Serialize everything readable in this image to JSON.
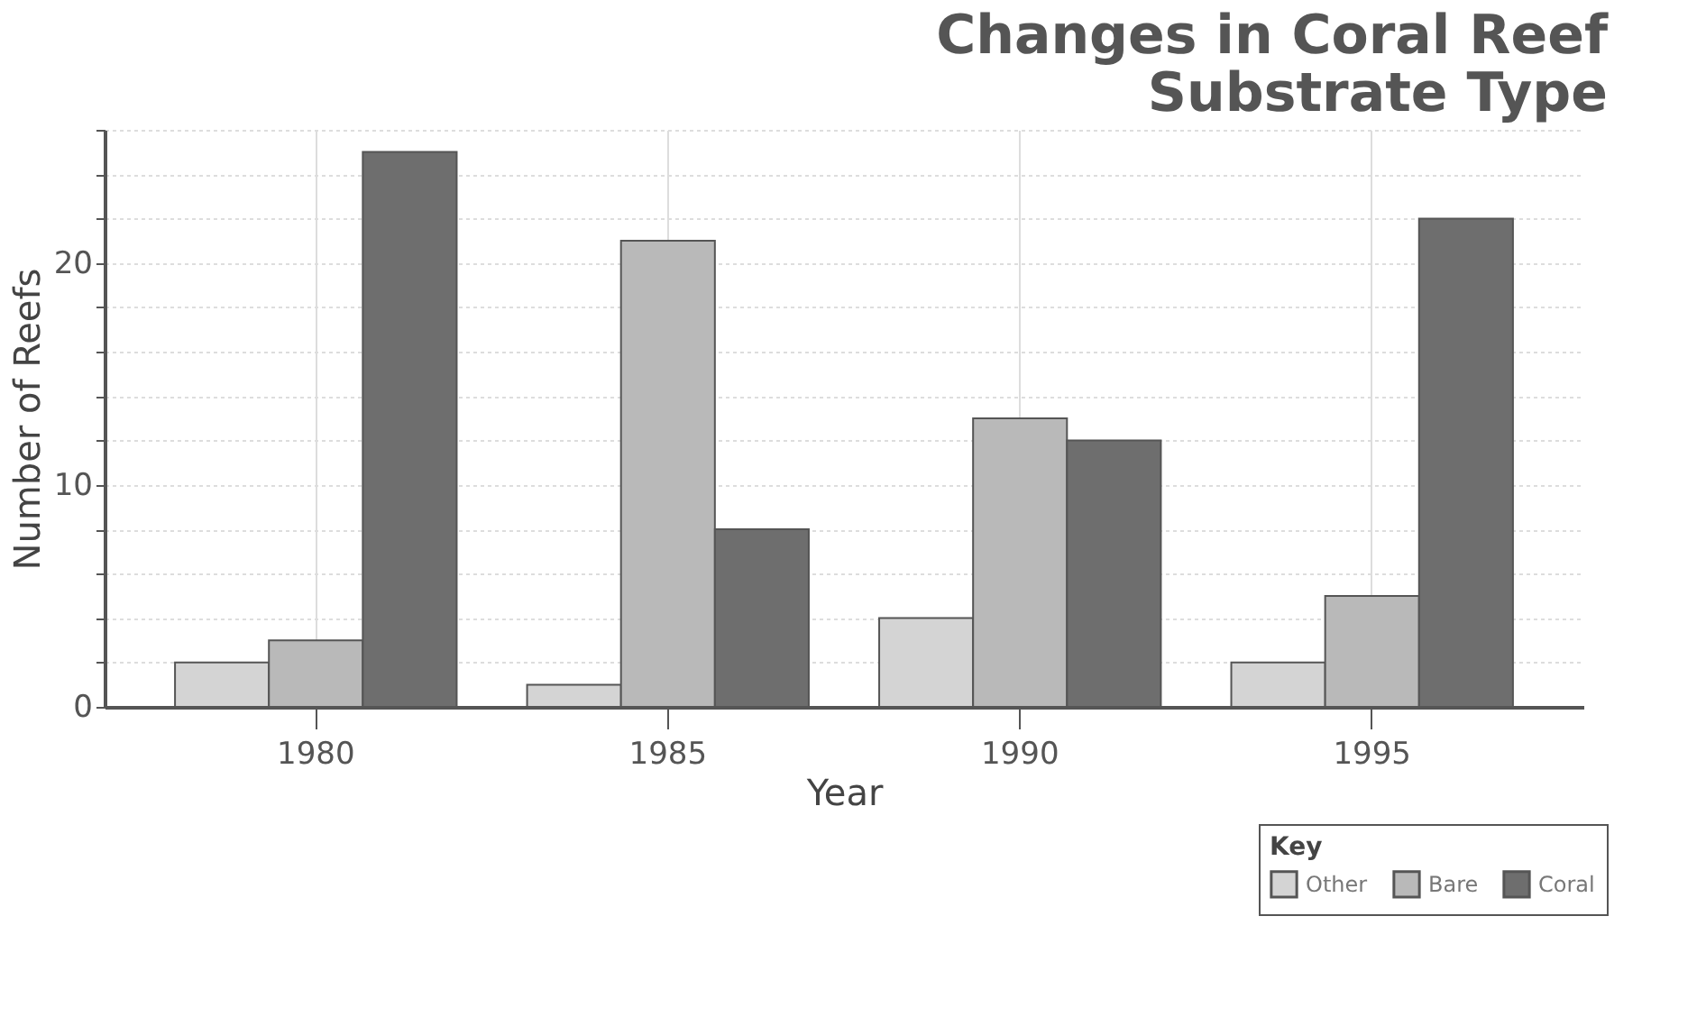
{
  "chart_data": {
    "type": "bar",
    "title": [
      "Changes in Coral Reef",
      "Substrate Type"
    ],
    "xlabel": "Year",
    "ylabel": "Number of Reefs",
    "legend_title": "Key",
    "categories": [
      "1980",
      "1985",
      "1990",
      "1995"
    ],
    "series": [
      {
        "name": "Other",
        "color": "#d4d4d4",
        "values": [
          2,
          1,
          4,
          2
        ]
      },
      {
        "name": "Bare",
        "color": "#b9b9b9",
        "values": [
          3,
          21,
          13,
          5
        ]
      },
      {
        "name": "Coral",
        "color": "#6e6e6e",
        "values": [
          25,
          8,
          12,
          22
        ]
      }
    ],
    "ylim": [
      0,
      26
    ],
    "yticks": [
      0,
      {
        "value": 2,
        "label": null
      },
      {
        "value": 4,
        "label": null
      },
      {
        "value": 6,
        "label": null
      },
      {
        "value": 8,
        "label": null
      },
      10,
      {
        "value": 12,
        "label": null
      },
      {
        "value": 14,
        "label": null
      },
      {
        "value": 16,
        "label": null
      },
      {
        "value": 18,
        "label": null
      },
      20,
      {
        "value": 22,
        "label": null
      },
      {
        "value": 24,
        "label": null
      },
      {
        "value": 26,
        "label": null
      }
    ],
    "grid": true,
    "legend": "bottom right"
  }
}
